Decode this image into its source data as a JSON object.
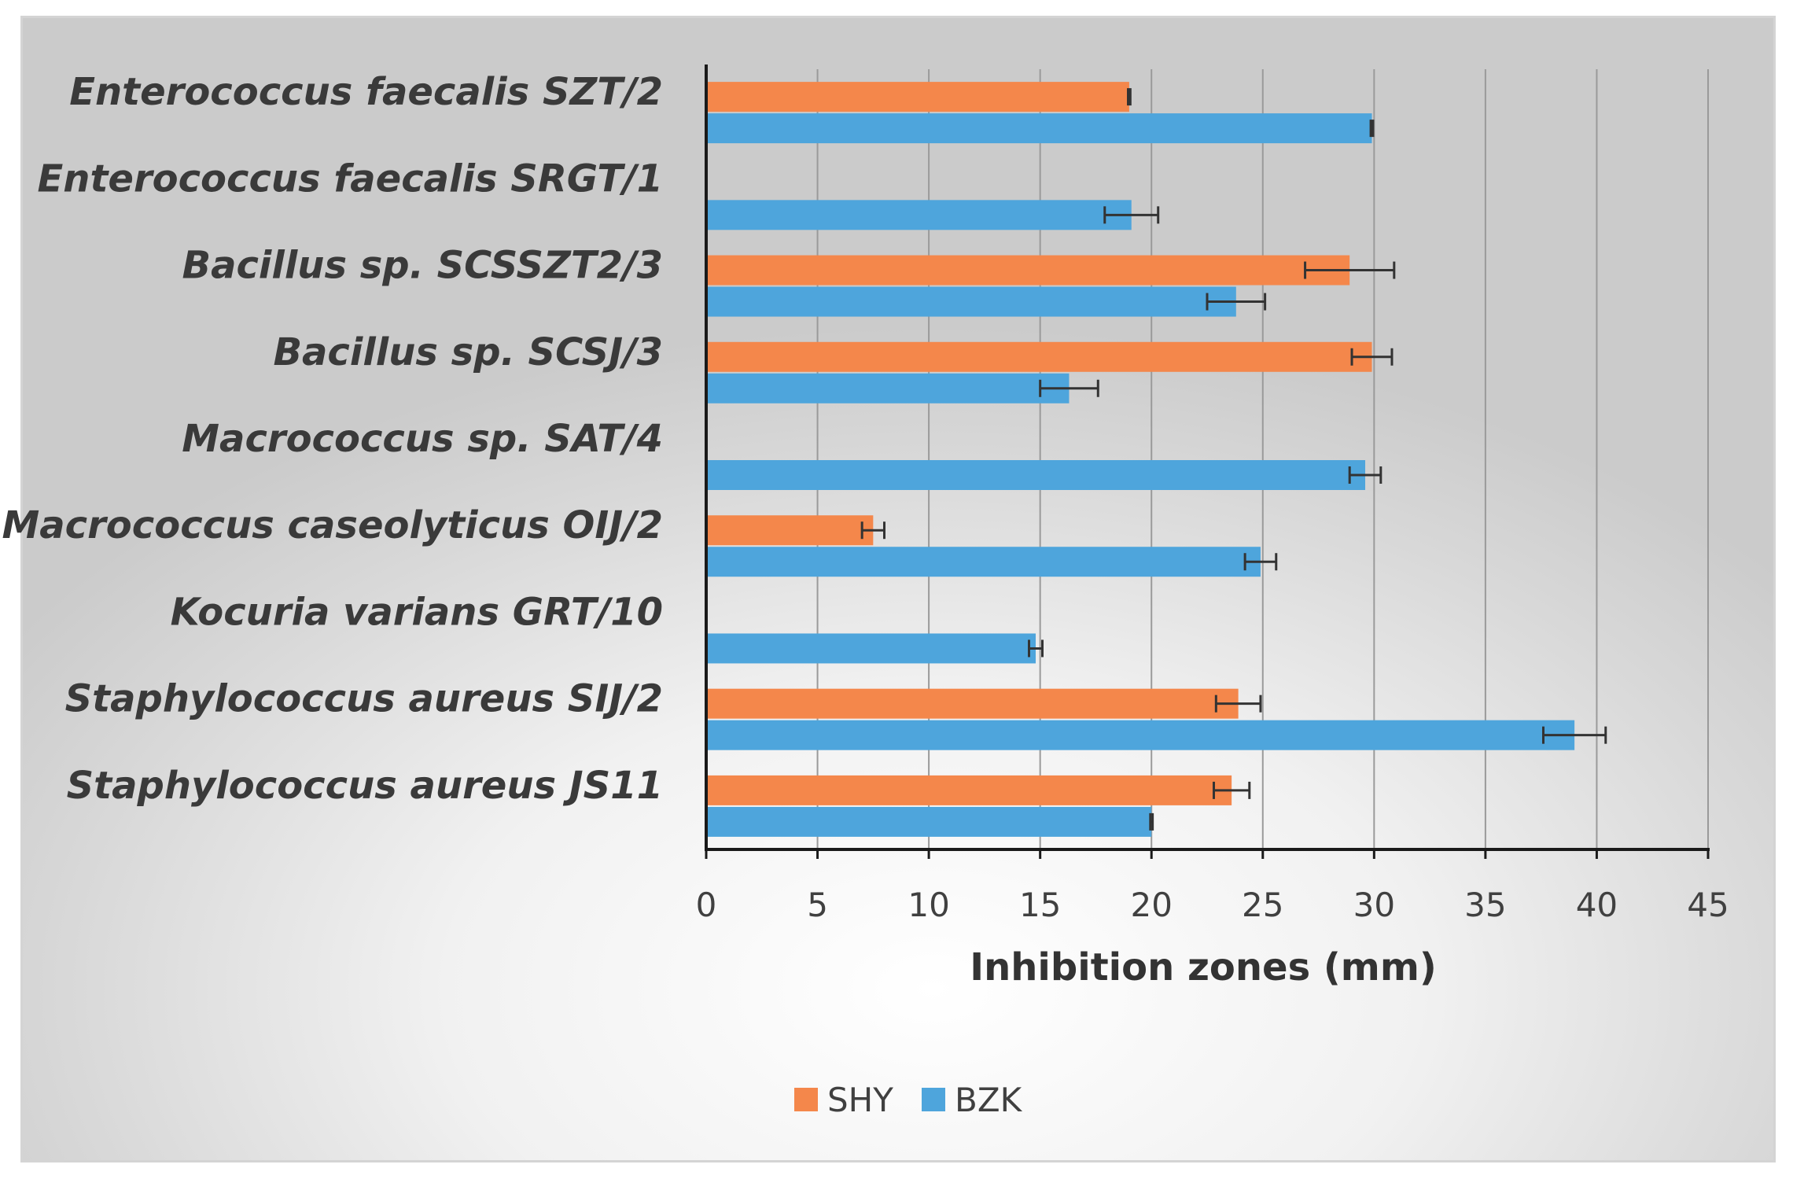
{
  "chart_data": {
    "type": "bar",
    "orientation": "horizontal",
    "categories": [
      "Enterococcus faecalis SZT/2",
      "Enterococcus faecalis SRGT/1",
      "Bacillus sp. SCSSZT2/3",
      "Bacillus sp. SCSJ/3",
      "Macrococcus sp. SAT/4",
      "Macrococcus caseolyticus OIJ/2",
      "Kocuria varians GRT/10",
      "Staphylococcus aureus SIJ/2",
      "Staphylococcus aureus JS11"
    ],
    "series": [
      {
        "name": "SHY",
        "color": "#f4874b",
        "values": [
          19,
          0,
          28.9,
          29.9,
          0,
          7.5,
          0,
          23.9,
          23.6
        ],
        "errors": [
          0.05,
          0,
          2.0,
          0.9,
          0,
          0.5,
          0,
          1.0,
          0.8
        ]
      },
      {
        "name": "BZK",
        "color": "#4ea5dc",
        "values": [
          29.9,
          19.1,
          23.8,
          16.3,
          29.6,
          24.9,
          14.8,
          39,
          20
        ],
        "errors": [
          0.05,
          1.2,
          1.3,
          1.3,
          0.7,
          0.7,
          0.3,
          1.4,
          0.05
        ]
      }
    ],
    "xlabel": "Inhibition zones (mm)",
    "ylabel": "",
    "xlim": [
      0,
      45
    ],
    "xticks": [
      0,
      5,
      10,
      15,
      20,
      25,
      30,
      35,
      40,
      45
    ],
    "grid": "vertical",
    "legend": "bottom-center"
  }
}
